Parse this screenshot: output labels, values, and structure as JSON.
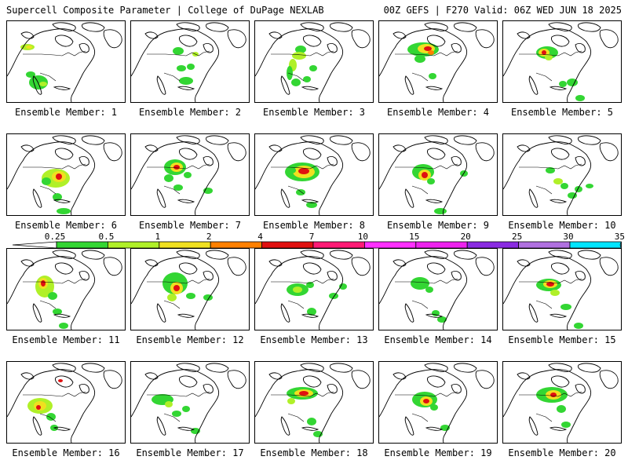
{
  "header": {
    "title_left": "Supercell Composite Parameter | College of DuPage NEXLAB",
    "title_right": "00Z GEFS | F270 Valid: 06Z WED JUN 18 2025"
  },
  "caption_prefix": "Ensemble Member: ",
  "members": [
    {
      "label": "Ensemble Member: 1",
      "blobs": [
        [
          26,
          33,
          9,
          4,
          "#b0f028"
        ],
        [
          28,
          33,
          4,
          2,
          "#f0e020"
        ],
        [
          40,
          78,
          12,
          9,
          "#33d633"
        ],
        [
          46,
          80,
          5,
          3,
          "#b0f028"
        ],
        [
          30,
          68,
          6,
          4,
          "#33d633"
        ]
      ]
    },
    {
      "label": "Ensemble Member: 2",
      "blobs": [
        [
          60,
          38,
          7,
          5,
          "#33d633"
        ],
        [
          64,
          60,
          6,
          4,
          "#33d633"
        ],
        [
          76,
          58,
          5,
          4,
          "#33d633"
        ],
        [
          70,
          76,
          9,
          5,
          "#33d633"
        ],
        [
          82,
          42,
          4,
          3,
          "#b0f028"
        ]
      ]
    },
    {
      "label": "Ensemble Member: 3",
      "blobs": [
        [
          58,
          36,
          7,
          5,
          "#33d633"
        ],
        [
          56,
          44,
          9,
          5,
          "#b0f028"
        ],
        [
          48,
          56,
          5,
          8,
          "#b0f028"
        ],
        [
          44,
          66,
          4,
          9,
          "#33d633"
        ],
        [
          52,
          78,
          6,
          5,
          "#33d633"
        ],
        [
          66,
          74,
          5,
          4,
          "#33d633"
        ],
        [
          74,
          60,
          5,
          4,
          "#33d633"
        ]
      ]
    },
    {
      "label": "Ensemble Member: 4",
      "blobs": [
        [
          56,
          36,
          20,
          9,
          "#33d633"
        ],
        [
          60,
          35,
          11,
          6,
          "#f0e020"
        ],
        [
          62,
          35,
          5,
          3,
          "#e01010"
        ],
        [
          66,
          40,
          4,
          3,
          "#ff8000"
        ],
        [
          52,
          48,
          7,
          5,
          "#33d633"
        ],
        [
          68,
          70,
          5,
          4,
          "#33d633"
        ]
      ]
    },
    {
      "label": "Ensemble Member: 5",
      "blobs": [
        [
          56,
          40,
          14,
          8,
          "#33d633"
        ],
        [
          52,
          40,
          7,
          5,
          "#f0e020"
        ],
        [
          52,
          40,
          3,
          3,
          "#e01010"
        ],
        [
          58,
          46,
          5,
          4,
          "#b0f028"
        ],
        [
          76,
          80,
          5,
          4,
          "#33d633"
        ],
        [
          88,
          78,
          7,
          5,
          "#33d633"
        ],
        [
          98,
          98,
          6,
          4,
          "#33d633"
        ]
      ]
    },
    {
      "label": "Ensemble Member: 6",
      "blobs": [
        [
          62,
          56,
          18,
          12,
          "#b0f028"
        ],
        [
          66,
          54,
          9,
          7,
          "#f0e020"
        ],
        [
          66,
          54,
          4,
          4,
          "#e01010"
        ],
        [
          50,
          60,
          6,
          5,
          "#33d633"
        ],
        [
          64,
          80,
          6,
          5,
          "#33d633"
        ],
        [
          72,
          98,
          9,
          4,
          "#33d633"
        ]
      ]
    },
    {
      "label": "Ensemble Member: 7",
      "blobs": [
        [
          56,
          42,
          14,
          10,
          "#33d633"
        ],
        [
          58,
          42,
          8,
          6,
          "#f0e020"
        ],
        [
          58,
          42,
          4,
          3,
          "#e01010"
        ],
        [
          48,
          56,
          6,
          5,
          "#33d633"
        ],
        [
          60,
          68,
          6,
          4,
          "#33d633"
        ],
        [
          72,
          52,
          5,
          4,
          "#33d633"
        ],
        [
          98,
          72,
          6,
          4,
          "#33d633"
        ]
      ]
    },
    {
      "label": "Ensemble Member: 8",
      "blobs": [
        [
          60,
          48,
          22,
          12,
          "#33d633"
        ],
        [
          62,
          48,
          14,
          8,
          "#f0e020"
        ],
        [
          62,
          47,
          7,
          4,
          "#e01010"
        ],
        [
          46,
          46,
          6,
          4,
          "#33d633"
        ],
        [
          58,
          74,
          6,
          4,
          "#33d633"
        ],
        [
          72,
          90,
          7,
          4,
          "#33d633"
        ]
      ]
    },
    {
      "label": "Ensemble Member: 9",
      "blobs": [
        [
          56,
          48,
          14,
          10,
          "#33d633"
        ],
        [
          58,
          52,
          8,
          7,
          "#f0e020"
        ],
        [
          58,
          52,
          4,
          4,
          "#e01010"
        ],
        [
          66,
          60,
          5,
          4,
          "#33d633"
        ],
        [
          78,
          98,
          8,
          4,
          "#33d633"
        ],
        [
          108,
          50,
          5,
          4,
          "#33d633"
        ]
      ]
    },
    {
      "label": "Ensemble Member: 10",
      "blobs": [
        [
          60,
          46,
          6,
          4,
          "#33d633"
        ],
        [
          70,
          60,
          6,
          4,
          "#b0f028"
        ],
        [
          78,
          66,
          5,
          4,
          "#33d633"
        ],
        [
          88,
          78,
          6,
          4,
          "#33d633"
        ],
        [
          96,
          70,
          5,
          4,
          "#33d633"
        ],
        [
          110,
          66,
          5,
          3,
          "#33d633"
        ]
      ]
    },
    {
      "label": "Ensemble Member: 11",
      "blobs": [
        [
          48,
          48,
          12,
          14,
          "#b0f028"
        ],
        [
          46,
          44,
          6,
          7,
          "#f0e020"
        ],
        [
          46,
          44,
          3,
          4,
          "#e01010"
        ],
        [
          58,
          60,
          6,
          5,
          "#33d633"
        ],
        [
          64,
          80,
          6,
          4,
          "#33d633"
        ],
        [
          72,
          98,
          6,
          4,
          "#33d633"
        ]
      ]
    },
    {
      "label": "Ensemble Member: 12",
      "blobs": [
        [
          56,
          44,
          16,
          14,
          "#33d633"
        ],
        [
          58,
          50,
          8,
          8,
          "#f0e020"
        ],
        [
          58,
          50,
          4,
          4,
          "#e01010"
        ],
        [
          52,
          62,
          6,
          5,
          "#b0f028"
        ],
        [
          76,
          60,
          6,
          4,
          "#33d633"
        ],
        [
          98,
          62,
          6,
          4,
          "#33d633"
        ]
      ]
    },
    {
      "label": "Ensemble Member: 13",
      "blobs": [
        [
          54,
          52,
          14,
          8,
          "#33d633"
        ],
        [
          54,
          52,
          6,
          4,
          "#b0f028"
        ],
        [
          70,
          46,
          5,
          4,
          "#33d633"
        ],
        [
          72,
          80,
          6,
          5,
          "#33d633"
        ],
        [
          100,
          60,
          6,
          4,
          "#33d633"
        ],
        [
          112,
          48,
          5,
          4,
          "#33d633"
        ]
      ]
    },
    {
      "label": "Ensemble Member: 14",
      "blobs": [
        [
          52,
          44,
          12,
          8,
          "#33d633"
        ],
        [
          64,
          52,
          5,
          4,
          "#33d633"
        ],
        [
          72,
          82,
          5,
          4,
          "#33d633"
        ],
        [
          80,
          90,
          6,
          4,
          "#33d633"
        ]
      ]
    },
    {
      "label": "Ensemble Member: 15",
      "blobs": [
        [
          58,
          46,
          16,
          8,
          "#33d633"
        ],
        [
          60,
          45,
          9,
          5,
          "#f0e020"
        ],
        [
          60,
          45,
          5,
          3,
          "#e01010"
        ],
        [
          66,
          56,
          6,
          4,
          "#b0f028"
        ],
        [
          80,
          74,
          7,
          4,
          "#33d633"
        ],
        [
          96,
          98,
          6,
          4,
          "#33d633"
        ]
      ]
    },
    {
      "label": "Ensemble Member: 16",
      "blobs": [
        [
          42,
          56,
          16,
          10,
          "#b0f028"
        ],
        [
          42,
          56,
          8,
          6,
          "#f0e020"
        ],
        [
          40,
          58,
          3,
          3,
          "#e01010"
        ],
        [
          56,
          70,
          6,
          5,
          "#33d633"
        ],
        [
          60,
          84,
          5,
          4,
          "#33d633"
        ],
        [
          68,
          24,
          3,
          2,
          "#e01010"
        ]
      ]
    },
    {
      "label": "Ensemble Member: 17",
      "blobs": [
        [
          40,
          48,
          14,
          7,
          "#33d633"
        ],
        [
          48,
          54,
          5,
          4,
          "#b0f028"
        ],
        [
          58,
          66,
          6,
          4,
          "#33d633"
        ],
        [
          70,
          60,
          5,
          4,
          "#33d633"
        ],
        [
          82,
          88,
          6,
          4,
          "#33d633"
        ]
      ]
    },
    {
      "label": "Ensemble Member: 18",
      "blobs": [
        [
          60,
          40,
          20,
          8,
          "#33d633"
        ],
        [
          62,
          40,
          12,
          5,
          "#f0e020"
        ],
        [
          62,
          40,
          6,
          3,
          "#e01010"
        ],
        [
          46,
          50,
          5,
          4,
          "#b0f028"
        ],
        [
          72,
          76,
          6,
          5,
          "#33d633"
        ],
        [
          80,
          92,
          6,
          4,
          "#33d633"
        ]
      ]
    },
    {
      "label": "Ensemble Member: 19",
      "blobs": [
        [
          58,
          48,
          16,
          10,
          "#33d633"
        ],
        [
          60,
          50,
          8,
          6,
          "#f0e020"
        ],
        [
          60,
          50,
          4,
          3,
          "#e01010"
        ],
        [
          70,
          58,
          5,
          4,
          "#33d633"
        ],
        [
          84,
          84,
          6,
          4,
          "#33d633"
        ]
      ]
    },
    {
      "label": "Ensemble Member: 20",
      "blobs": [
        [
          62,
          42,
          20,
          10,
          "#33d633"
        ],
        [
          64,
          42,
          10,
          6,
          "#f0e020"
        ],
        [
          64,
          42,
          4,
          3,
          "#e01010"
        ],
        [
          74,
          60,
          6,
          5,
          "#33d633"
        ],
        [
          80,
          80,
          6,
          4,
          "#33d633"
        ]
      ]
    }
  ],
  "colorbar": {
    "ticks": [
      "0.25",
      "0.5",
      "1",
      "2",
      "4",
      "7",
      "10",
      "15",
      "20",
      "25",
      "30",
      "35"
    ],
    "colors": [
      "#ffffff",
      "#33d633",
      "#b0f028",
      "#f0e020",
      "#ff8000",
      "#e01010",
      "#ff1a75",
      "#ff30ff",
      "#ee22ee",
      "#8a2be2",
      "#b070e0",
      "#00e5ff"
    ]
  }
}
